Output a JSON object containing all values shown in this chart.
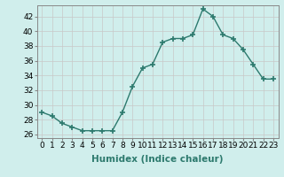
{
  "xlabel": "Humidex (Indice chaleur)",
  "ylabel": "",
  "x": [
    0,
    1,
    2,
    3,
    4,
    5,
    6,
    7,
    8,
    9,
    10,
    11,
    12,
    13,
    14,
    15,
    16,
    17,
    18,
    19,
    20,
    21,
    22,
    23
  ],
  "y": [
    29,
    28.5,
    27.5,
    27,
    26.5,
    26.5,
    26.5,
    26.5,
    29,
    32.5,
    35,
    35.5,
    38.5,
    39,
    39,
    39.5,
    43,
    42,
    39.5,
    39,
    37.5,
    35.5,
    33.5,
    33.5
  ],
  "line_color": "#2d7a6e",
  "marker": "+",
  "marker_size": 4,
  "bg_color": "#d0eeec",
  "grid_color": "#c8c8c8",
  "ylim": [
    25.5,
    43.5
  ],
  "yticks": [
    26,
    28,
    30,
    32,
    34,
    36,
    38,
    40,
    42
  ],
  "xlim": [
    -0.5,
    23.5
  ],
  "tick_fontsize": 6.5,
  "label_fontsize": 7.5
}
